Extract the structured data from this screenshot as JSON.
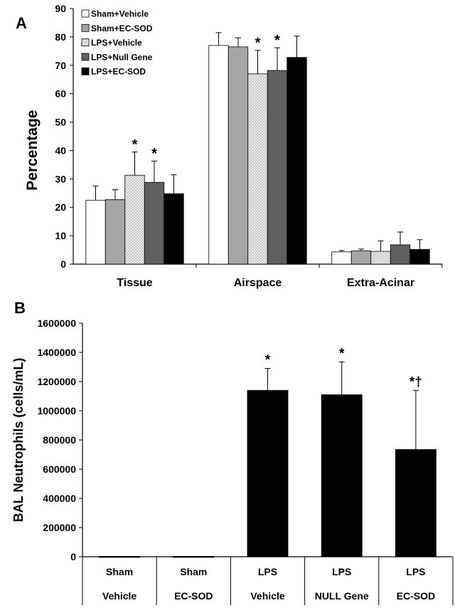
{
  "panels": {
    "a": {
      "letter": "A"
    },
    "b": {
      "letter": "B"
    }
  },
  "chart_data": [
    {
      "type": "bar",
      "panel": "A",
      "ylabel": "Percentage",
      "ylim": [
        0,
        90
      ],
      "yticks": [
        0,
        10,
        20,
        30,
        40,
        50,
        60,
        70,
        80,
        90
      ],
      "categories": [
        "Tissue",
        "Airspace",
        "Extra-Acinar"
      ],
      "legend_position": "top-left",
      "series": [
        {
          "name": "Sham+Vehicle",
          "fill": "#ffffff",
          "pattern": "none",
          "values": [
            22.5,
            77,
            4.3
          ],
          "errors": [
            5,
            4.5,
            0.5
          ],
          "marks": [
            "",
            "",
            ""
          ]
        },
        {
          "name": "Sham+EC-SOD",
          "fill": "#a6a6a6",
          "pattern": "none",
          "values": [
            22.7,
            76.5,
            4.7
          ],
          "errors": [
            3.5,
            3.2,
            0.6
          ],
          "marks": [
            "",
            "",
            ""
          ]
        },
        {
          "name": "LPS+Vehicle",
          "fill": "#e6e6e6",
          "pattern": "dots",
          "values": [
            31.3,
            67,
            4.5
          ],
          "errors": [
            8.2,
            8.3,
            3.7
          ],
          "marks": [
            "*",
            "*",
            ""
          ]
        },
        {
          "name": "LPS+Null Gene",
          "fill": "#5f5f5f",
          "pattern": "none",
          "values": [
            28.8,
            68.2,
            6.8
          ],
          "errors": [
            7.5,
            8.0,
            4.5
          ],
          "marks": [
            "*",
            "*",
            ""
          ]
        },
        {
          "name": "LPS+EC-SOD",
          "fill": "#000000",
          "pattern": "none",
          "values": [
            24.8,
            72.8,
            5.2
          ],
          "errors": [
            6.7,
            7.5,
            3.4
          ],
          "marks": [
            "",
            "",
            ""
          ]
        }
      ]
    },
    {
      "type": "bar",
      "panel": "B",
      "ylabel": "BAL Neutrophils (cells/mL)",
      "ylim": [
        0,
        1600000
      ],
      "yticks": [
        0,
        200000,
        400000,
        600000,
        800000,
        1000000,
        1200000,
        1400000,
        1600000
      ],
      "categories": [
        {
          "line1": "Sham",
          "line2": "Vehicle"
        },
        {
          "line1": "Sham",
          "line2": "EC-SOD"
        },
        {
          "line1": "LPS",
          "line2": "Vehicle"
        },
        {
          "line1": "LPS",
          "line2": "NULL Gene"
        },
        {
          "line1": "LPS",
          "line2": "EC-SOD"
        }
      ],
      "values": [
        3000,
        3000,
        1140000,
        1110000,
        735000
      ],
      "errors": [
        0,
        0,
        150000,
        225000,
        405000
      ],
      "marks": [
        "",
        "",
        "*",
        "*",
        "*†"
      ],
      "bar_color": "#000000"
    }
  ]
}
